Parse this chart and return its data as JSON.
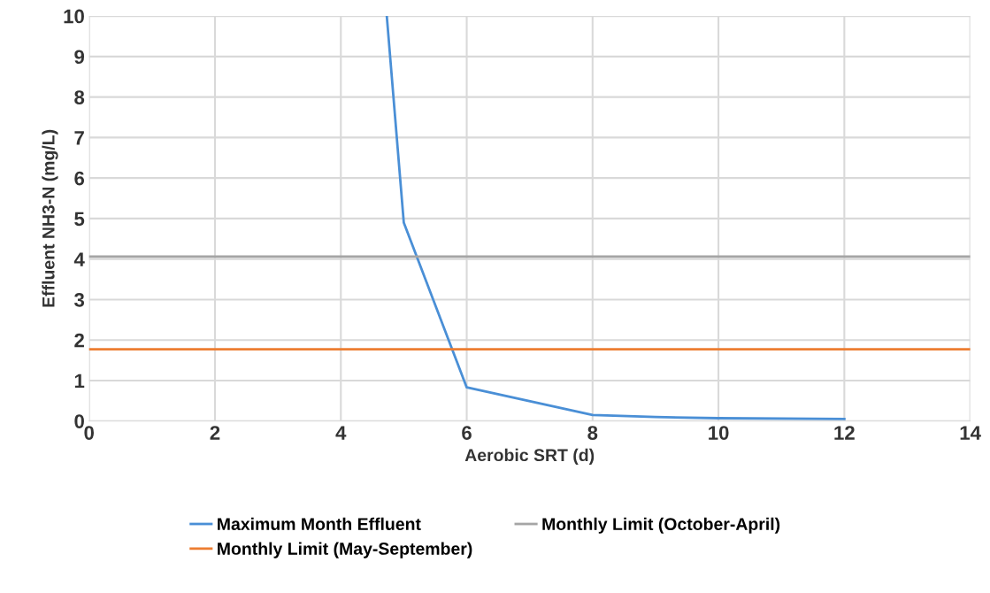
{
  "chart_data": {
    "type": "line",
    "xlabel": "Aerobic SRT (d)",
    "ylabel": "Effluent NH3-N (mg/L)",
    "series": [
      {
        "name": "Maximum Month Effluent",
        "color": "#4a8fd6",
        "x": [
          4.73,
          5,
          6,
          8,
          9,
          10,
          12
        ],
        "values": [
          10,
          4.9,
          0.83,
          0.15,
          0.1,
          0.07,
          0.05
        ]
      },
      {
        "name": "Monthly Limit (May-September)",
        "color": "#ed7d31",
        "x": [
          0,
          14
        ],
        "values": [
          1.77,
          1.77
        ]
      },
      {
        "name": "Monthly Limit (October-April)",
        "color": "#a5a5a5",
        "x": [
          0,
          14
        ],
        "values": [
          4.06,
          4.06
        ]
      }
    ],
    "xlim": [
      0,
      14
    ],
    "xticks": [
      0,
      2,
      4,
      6,
      8,
      10,
      12,
      14
    ],
    "ylim": [
      0,
      10
    ],
    "yticks": [
      0,
      1,
      2,
      3,
      4,
      5,
      6,
      7,
      8,
      9,
      10
    ],
    "grid": true,
    "legend": "bottom",
    "marker": "none",
    "line_style": "solid"
  }
}
